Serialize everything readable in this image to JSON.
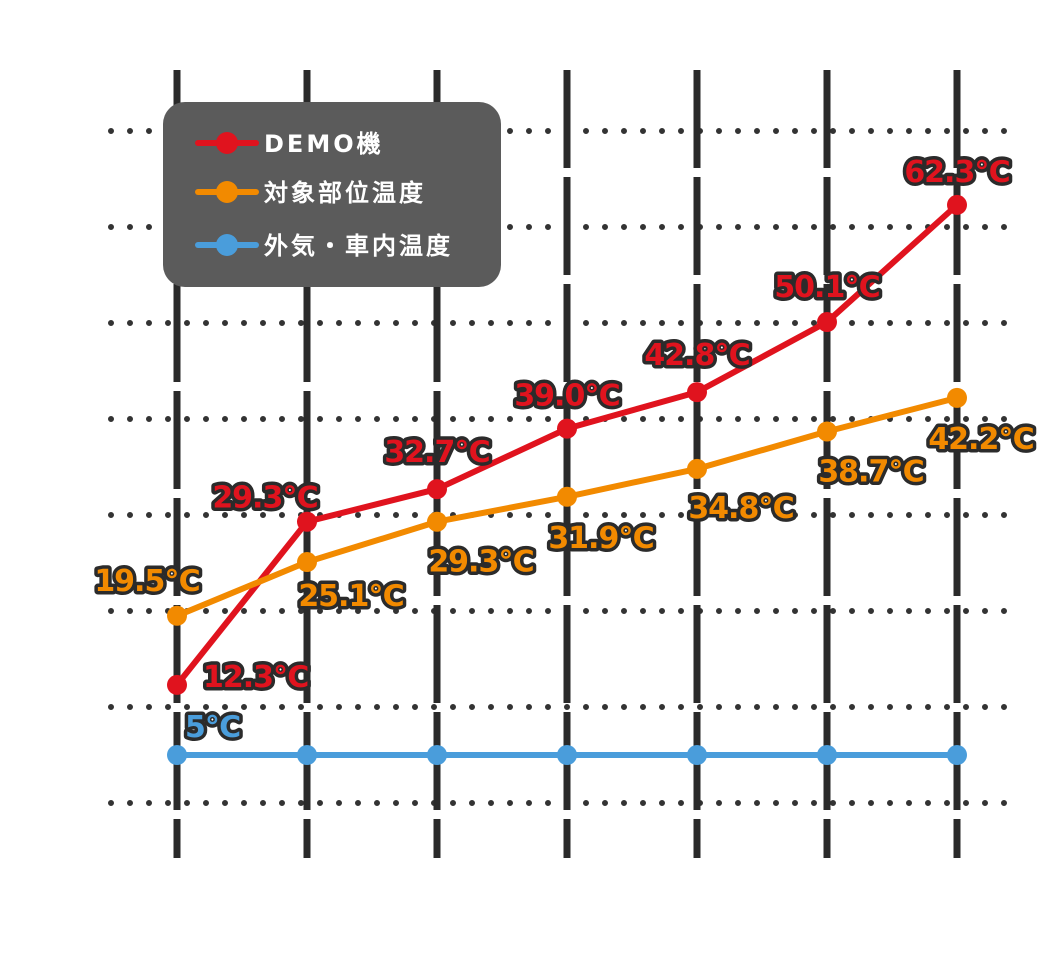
{
  "chart_data": {
    "type": "line",
    "title": "",
    "xlabel": "",
    "ylabel": "",
    "grid": true,
    "legend_position": "top-left",
    "unit": "℃",
    "x": [
      1,
      2,
      3,
      4,
      5,
      6,
      7
    ],
    "ylim": [
      0,
      70
    ],
    "series": [
      {
        "name": "DEMO機",
        "color": "#e0131e",
        "values": [
          12.3,
          29.3,
          32.7,
          39.0,
          42.8,
          50.1,
          62.3
        ],
        "labels": [
          "12.3℃",
          "29.3℃",
          "32.7℃",
          "39.0℃",
          "42.8℃",
          "50.1℃",
          "62.3℃"
        ]
      },
      {
        "name": "対象部位温度",
        "color": "#f28a00",
        "values": [
          19.5,
          25.1,
          29.3,
          31.9,
          34.8,
          38.7,
          42.2
        ],
        "labels": [
          "19.5℃",
          "25.1℃",
          "29.3℃",
          "31.9℃",
          "34.8℃",
          "38.7℃",
          "42.2℃"
        ]
      },
      {
        "name": "外気・車内温度",
        "color": "#4a9ddb",
        "values": [
          5,
          5,
          5,
          5,
          5,
          5,
          5
        ],
        "labels": [
          "5℃",
          "",
          "",
          "",
          "",
          "",
          ""
        ]
      }
    ]
  }
}
